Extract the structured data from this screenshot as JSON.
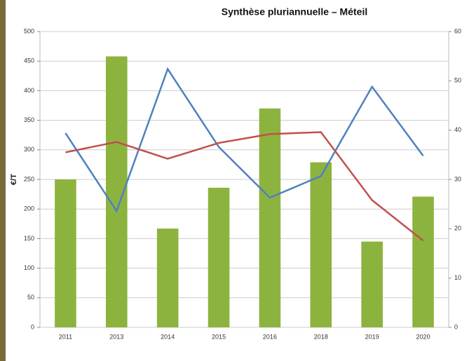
{
  "chart_data": {
    "type": "bar_line",
    "title": "Synthèse pluriannuelle – Méteil",
    "y_label": "€/T",
    "categories": [
      "2011",
      "2013",
      "2014",
      "2015",
      "2016",
      "2018",
      "2019",
      "2020"
    ],
    "series": [
      {
        "type": "bar",
        "color": "#8db33f",
        "values": [
          250,
          458,
          167,
          236,
          370,
          279,
          145,
          221
        ]
      },
      {
        "type": "line",
        "axis": "y2",
        "color": "#4f81bd",
        "values": [
          39.4,
          23.6,
          52.4,
          36.6,
          26.3,
          30.7,
          48.8,
          34.8
        ]
      },
      {
        "type": "line",
        "axis": "y2",
        "color": "#c0504d",
        "values": [
          35.5,
          37.6,
          34.2,
          37.4,
          39.2,
          39.6,
          25.8,
          17.6
        ]
      }
    ],
    "ylim": [
      0,
      500
    ],
    "yticks": [
      0,
      50,
      100,
      150,
      200,
      250,
      300,
      350,
      400,
      450,
      500
    ],
    "y2lim": [
      0,
      60
    ],
    "y2ticks": [
      0,
      10,
      20,
      30,
      40,
      50,
      60
    ],
    "grid": true
  }
}
